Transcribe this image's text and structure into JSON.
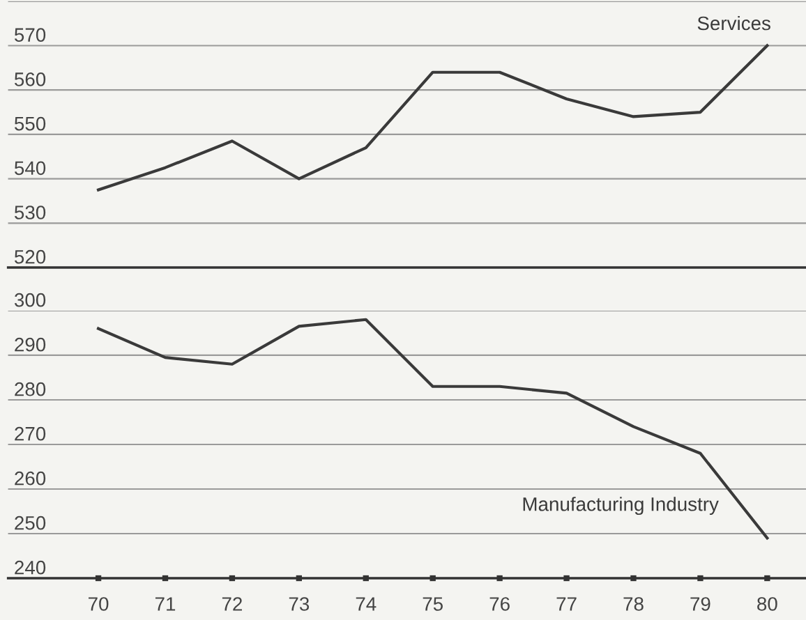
{
  "chart_data": [
    {
      "type": "line",
      "x": [
        70,
        71,
        72,
        73,
        74,
        75,
        76,
        77,
        78,
        79,
        80
      ],
      "xlim": [
        68.65,
        80.58
      ],
      "xticks": [
        70,
        71,
        72,
        73,
        74,
        75,
        76,
        77,
        78,
        79,
        80
      ],
      "tick_labels": "y",
      "ylim": [
        520,
        580
      ],
      "yticks": [
        520,
        530,
        540,
        550,
        560,
        570,
        {
          "value": 580,
          "label": null
        }
      ],
      "grid": "y",
      "marker": "none",
      "line_style": "solid",
      "series": [
        {
          "name": "Services",
          "color": "#3a3a3a",
          "values": [
            537.5,
            542.5,
            548.5,
            540,
            547,
            564,
            564,
            558,
            554,
            555,
            570
          ]
        }
      ]
    },
    {
      "type": "line",
      "x": [
        70,
        71,
        72,
        73,
        74,
        75,
        76,
        77,
        78,
        79,
        80
      ],
      "xlim": [
        68.65,
        80.58
      ],
      "xticks": [
        70,
        71,
        72,
        73,
        74,
        75,
        76,
        77,
        78,
        79,
        80
      ],
      "ylim": [
        240,
        300
      ],
      "yticks": [
        240,
        250,
        260,
        270,
        280,
        290,
        300
      ],
      "grid": "y",
      "marker": "none",
      "line_style": "solid",
      "series": [
        {
          "name": "Manufacturing Industry",
          "color": "#3a3a3a",
          "values": [
            296,
            289.5,
            288,
            296.5,
            298,
            283,
            283,
            281.5,
            274,
            268,
            249
          ]
        }
      ]
    }
  ]
}
